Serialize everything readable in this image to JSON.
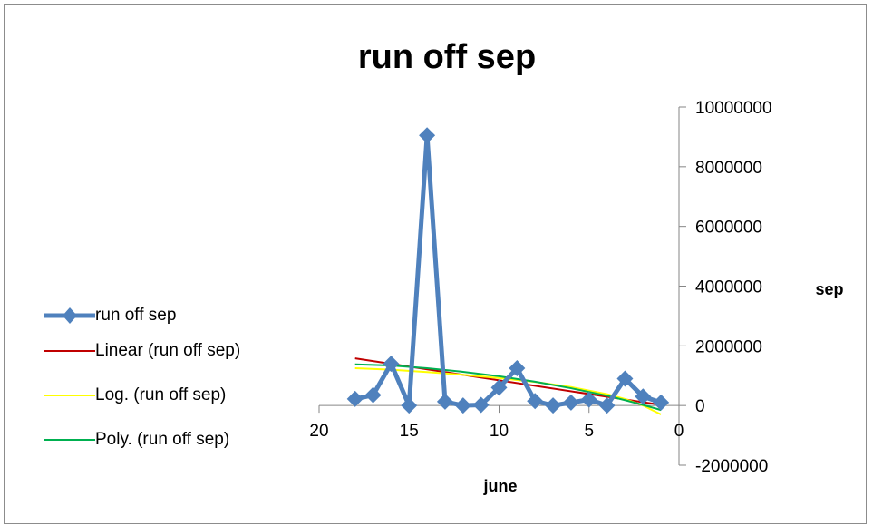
{
  "chart_data": {
    "type": "line",
    "title": "run off sep",
    "xlabel": "june",
    "ylabel": "sep",
    "x_axis": {
      "range": [
        0,
        20
      ],
      "reversed": true,
      "ticks": [
        20,
        15,
        10,
        5,
        0
      ]
    },
    "y_axis": {
      "range": [
        -2000000,
        10000000
      ],
      "ticks": [
        -2000000,
        0,
        2000000,
        4000000,
        6000000,
        8000000,
        10000000
      ]
    },
    "grid": false,
    "legend_position": "left",
    "series": [
      {
        "name": "run off sep",
        "color": "#4f81bd",
        "marker": "diamond",
        "x": [
          18,
          17,
          16,
          15,
          14,
          13,
          12,
          11,
          10,
          9,
          8,
          7,
          6,
          5,
          4,
          3,
          2,
          1
        ],
        "y": [
          220000,
          350000,
          1400000,
          0,
          9050000,
          130000,
          0,
          20000,
          600000,
          1250000,
          150000,
          0,
          100000,
          200000,
          0,
          900000,
          300000,
          100000
        ]
      }
    ],
    "trendlines": [
      {
        "name": "Linear (run off sep)",
        "color": "#c00000",
        "kind": "linear",
        "x": [
          18,
          1
        ],
        "y": [
          1580000,
          20000
        ]
      },
      {
        "name": "Log. (run off sep)",
        "color": "#ffff00",
        "kind": "logarithmic",
        "x": [
          18,
          16,
          14,
          12,
          10,
          8,
          6,
          4,
          3,
          2,
          1.5,
          1
        ],
        "y": [
          1250000,
          1200000,
          1120000,
          1030000,
          920000,
          790000,
          620000,
          380000,
          220000,
          0,
          -150000,
          -300000
        ]
      },
      {
        "name": "Poly. (run off sep)",
        "color": "#00b050",
        "kind": "polynomial",
        "x": [
          18,
          16,
          14,
          12,
          10,
          8,
          6,
          4,
          3,
          2,
          1
        ],
        "y": [
          1380000,
          1340000,
          1250000,
          1130000,
          980000,
          800000,
          580000,
          330000,
          180000,
          20000,
          -150000
        ]
      }
    ]
  }
}
